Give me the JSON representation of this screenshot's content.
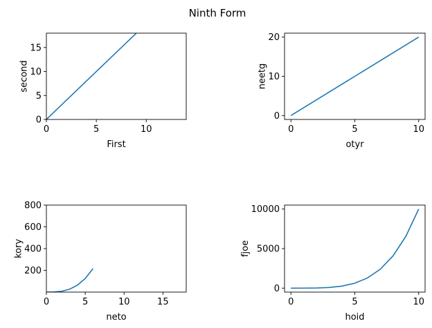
{
  "figure": {
    "suptitle": "Ninth Form",
    "line_color": "#1f77b4"
  },
  "chart_data": [
    {
      "type": "line",
      "xlabel": "First",
      "ylabel": "second",
      "xlim": [
        0,
        14
      ],
      "ylim": [
        0,
        18
      ],
      "xticks": [
        0,
        5,
        10
      ],
      "yticks": [
        0,
        5,
        10,
        15
      ],
      "grid": false,
      "series": [
        {
          "x": [
            0,
            1,
            2,
            3,
            4,
            5,
            6,
            7,
            8,
            9,
            10
          ],
          "y": [
            0,
            2,
            4,
            6,
            8,
            10,
            12,
            14,
            16,
            18,
            20
          ]
        }
      ]
    },
    {
      "type": "line",
      "xlabel": "otyr",
      "ylabel": "neetg",
      "xlim": [
        -0.5,
        10.5
      ],
      "ylim": [
        -1,
        21
      ],
      "xticks": [
        0,
        5,
        10
      ],
      "yticks": [
        0,
        10,
        20
      ],
      "grid": false,
      "series": [
        {
          "x": [
            0,
            1,
            2,
            3,
            4,
            5,
            6,
            7,
            8,
            9,
            10
          ],
          "y": [
            0,
            2,
            4,
            6,
            8,
            10,
            12,
            14,
            16,
            18,
            20
          ]
        }
      ]
    },
    {
      "type": "line",
      "xlabel": "neto",
      "ylabel": "kory",
      "xlim": [
        0,
        18
      ],
      "ylim": [
        0,
        800
      ],
      "xticks": [
        0,
        5,
        10,
        15
      ],
      "yticks": [
        200,
        400,
        600,
        800
      ],
      "grid": false,
      "series": [
        {
          "x": [
            0,
            1,
            2,
            3,
            4,
            5,
            6
          ],
          "y": [
            0,
            1,
            8,
            27,
            64,
            125,
            216
          ]
        }
      ]
    },
    {
      "type": "line",
      "xlabel": "hoid",
      "ylabel": "fjoe",
      "xlim": [
        -0.5,
        10.5
      ],
      "ylim": [
        -500,
        10500
      ],
      "xticks": [
        0,
        5,
        10
      ],
      "yticks": [
        0,
        5000,
        10000
      ],
      "grid": false,
      "series": [
        {
          "x": [
            0,
            1,
            2,
            3,
            4,
            5,
            6,
            7,
            8,
            9,
            10
          ],
          "y": [
            0,
            1,
            16,
            81,
            256,
            625,
            1296,
            2401,
            4096,
            6561,
            10000
          ]
        }
      ]
    }
  ]
}
